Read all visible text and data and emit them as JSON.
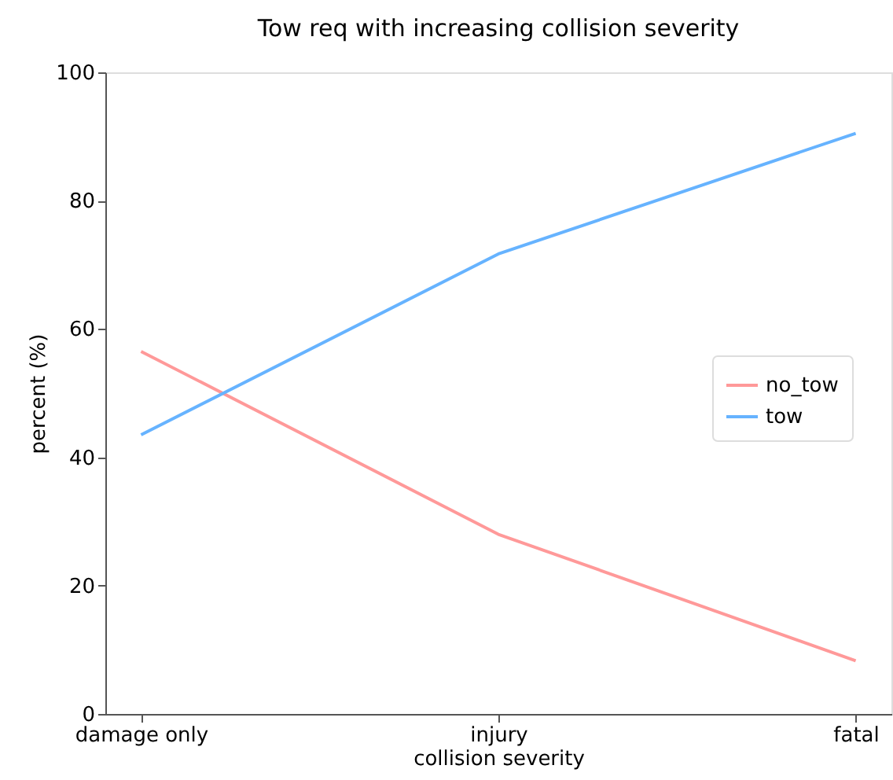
{
  "chart_data": {
    "type": "line",
    "title": "Tow req with increasing collision severity",
    "xlabel": "collision severity",
    "ylabel": "percent (%)",
    "categories": [
      "damage only",
      "injury",
      "fatal"
    ],
    "series": [
      {
        "name": "no_tow",
        "color": "#ff9999",
        "values": [
          56.5,
          28.0,
          8.3
        ]
      },
      {
        "name": "tow",
        "color": "#66b3ff",
        "values": [
          43.5,
          71.7,
          90.5
        ]
      }
    ],
    "ylim": [
      0,
      100
    ],
    "yticks": [
      0,
      20,
      40,
      60,
      80,
      100
    ],
    "grid": false,
    "legend": "right",
    "marker": "none",
    "line_style": "solid"
  }
}
